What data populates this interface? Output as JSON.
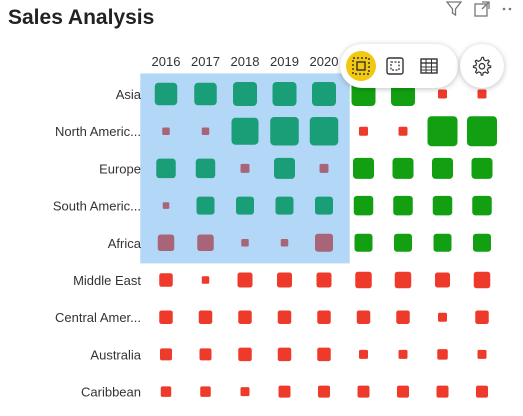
{
  "title": "Sales Analysis",
  "header_icons": [
    "filter-icon",
    "focus-mode-icon",
    "more-options-icon"
  ],
  "toolbar": {
    "buttons": [
      "select-data-icon",
      "selection-frame-icon",
      "table-icon"
    ],
    "active": "select-data-icon",
    "settings": "gear-icon"
  },
  "colors": {
    "selection_band": "#b3d8f7",
    "teal": "#1a9e78",
    "mauve": "#a86478",
    "green": "#12a012",
    "red": "#ee3a2a",
    "toolbar_active": "#f2c811"
  },
  "chart_data": {
    "type": "heatmap",
    "title": "Sales Analysis",
    "columns": [
      "2016",
      "2017",
      "2018",
      "2019",
      "2020",
      "",
      "",
      "",
      ""
    ],
    "rows": [
      "Asia",
      "North Americ...",
      "Europe",
      "South Americ...",
      "Africa",
      "Middle East",
      "Central Amer...",
      "Australia",
      "Caribbean"
    ],
    "selected_rows": 5,
    "selected_columns": 5,
    "cells": [
      [
        {
          "s": 0.75,
          "c": "teal"
        },
        {
          "s": 0.75,
          "c": "teal"
        },
        {
          "s": 0.8,
          "c": "teal"
        },
        {
          "s": 0.8,
          "c": "teal"
        },
        {
          "s": 0.8,
          "c": "teal"
        },
        {
          "s": 0.8,
          "c": "green"
        },
        {
          "s": 0.8,
          "c": "green"
        },
        {
          "s": 0.3,
          "c": "red"
        },
        {
          "s": 0.3,
          "c": "red"
        }
      ],
      [
        {
          "s": 0.25,
          "c": "mauve"
        },
        {
          "s": 0.25,
          "c": "mauve"
        },
        {
          "s": 0.9,
          "c": "teal"
        },
        {
          "s": 0.95,
          "c": "teal"
        },
        {
          "s": 0.95,
          "c": "teal"
        },
        {
          "s": 0.3,
          "c": "red"
        },
        {
          "s": 0.3,
          "c": "red"
        },
        {
          "s": 1.0,
          "c": "green"
        },
        {
          "s": 1.0,
          "c": "green"
        }
      ],
      [
        {
          "s": 0.65,
          "c": "teal"
        },
        {
          "s": 0.65,
          "c": "teal"
        },
        {
          "s": 0.3,
          "c": "mauve"
        },
        {
          "s": 0.7,
          "c": "teal"
        },
        {
          "s": 0.3,
          "c": "mauve"
        },
        {
          "s": 0.7,
          "c": "green"
        },
        {
          "s": 0.7,
          "c": "green"
        },
        {
          "s": 0.7,
          "c": "green"
        },
        {
          "s": 0.7,
          "c": "green"
        }
      ],
      [
        {
          "s": 0.22,
          "c": "mauve"
        },
        {
          "s": 0.6,
          "c": "teal"
        },
        {
          "s": 0.6,
          "c": "teal"
        },
        {
          "s": 0.6,
          "c": "teal"
        },
        {
          "s": 0.6,
          "c": "teal"
        },
        {
          "s": 0.65,
          "c": "green"
        },
        {
          "s": 0.65,
          "c": "green"
        },
        {
          "s": 0.65,
          "c": "green"
        },
        {
          "s": 0.65,
          "c": "green"
        }
      ],
      [
        {
          "s": 0.55,
          "c": "mauve"
        },
        {
          "s": 0.55,
          "c": "mauve"
        },
        {
          "s": 0.25,
          "c": "mauve"
        },
        {
          "s": 0.25,
          "c": "mauve"
        },
        {
          "s": 0.6,
          "c": "mauve"
        },
        {
          "s": 0.6,
          "c": "green"
        },
        {
          "s": 0.6,
          "c": "green"
        },
        {
          "s": 0.6,
          "c": "green"
        },
        {
          "s": 0.6,
          "c": "green"
        }
      ],
      [
        {
          "s": 0.45,
          "c": "red"
        },
        {
          "s": 0.25,
          "c": "red"
        },
        {
          "s": 0.5,
          "c": "red"
        },
        {
          "s": 0.5,
          "c": "red"
        },
        {
          "s": 0.5,
          "c": "red"
        },
        {
          "s": 0.55,
          "c": "red"
        },
        {
          "s": 0.55,
          "c": "red"
        },
        {
          "s": 0.5,
          "c": "red"
        },
        {
          "s": 0.55,
          "c": "red"
        }
      ],
      [
        {
          "s": 0.45,
          "c": "red"
        },
        {
          "s": 0.45,
          "c": "red"
        },
        {
          "s": 0.45,
          "c": "red"
        },
        {
          "s": 0.45,
          "c": "red"
        },
        {
          "s": 0.45,
          "c": "red"
        },
        {
          "s": 0.45,
          "c": "red"
        },
        {
          "s": 0.45,
          "c": "red"
        },
        {
          "s": 0.3,
          "c": "red"
        },
        {
          "s": 0.45,
          "c": "red"
        }
      ],
      [
        {
          "s": 0.4,
          "c": "red"
        },
        {
          "s": 0.4,
          "c": "red"
        },
        {
          "s": 0.45,
          "c": "red"
        },
        {
          "s": 0.45,
          "c": "red"
        },
        {
          "s": 0.45,
          "c": "red"
        },
        {
          "s": 0.3,
          "c": "red"
        },
        {
          "s": 0.3,
          "c": "red"
        },
        {
          "s": 0.35,
          "c": "red"
        },
        {
          "s": 0.3,
          "c": "red"
        }
      ],
      [
        {
          "s": 0.35,
          "c": "red"
        },
        {
          "s": 0.35,
          "c": "red"
        },
        {
          "s": 0.3,
          "c": "red"
        },
        {
          "s": 0.4,
          "c": "red"
        },
        {
          "s": 0.4,
          "c": "red"
        },
        {
          "s": 0.4,
          "c": "red"
        },
        {
          "s": 0.4,
          "c": "red"
        },
        {
          "s": 0.4,
          "c": "red"
        },
        {
          "s": 0.4,
          "c": "red"
        }
      ]
    ]
  }
}
